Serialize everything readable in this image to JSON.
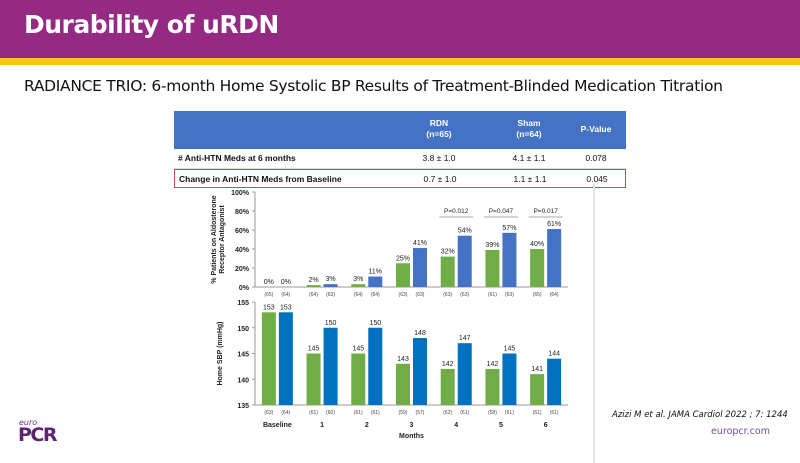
{
  "header": {
    "title": "Durability of uRDN"
  },
  "subtitle": "RADIANCE TRIO: 6-month Home Systolic BP Results of Treatment-Blinded Medication Titration",
  "table": {
    "columns": [
      "",
      "RDN\n(n=65)",
      "Sham\n(n=64)",
      "P-Value"
    ],
    "col_rdn_l1": "RDN",
    "col_rdn_l2": "(n=65)",
    "col_sham_l1": "Sham",
    "col_sham_l2": "(n=64)",
    "col_p": "P-Value",
    "rows": [
      {
        "label": "# Anti-HTN Meds at 6 months",
        "rdn": "3.8 ± 1.0",
        "sham": "4.1 ± 1.1",
        "p": "0.078"
      },
      {
        "label": "Change in Anti-HTN Meds from Baseline",
        "rdn": "0.7 ± 1.0",
        "sham": "1.1 ± 1.1",
        "p": "0.045"
      }
    ]
  },
  "colors": {
    "rdn": "#70ad47",
    "sham_top": "#4472c4",
    "sham_bottom": "#0070c0",
    "header": "#952a84",
    "stripe": "#f5c518"
  },
  "chart_data": [
    {
      "type": "bar",
      "title": "",
      "ylabel": "% Patients on Aldosterone Receptor Antagonist",
      "ylim": [
        0,
        100
      ],
      "yticks": [
        "0%",
        "20%",
        "40%",
        "60%",
        "80%",
        "100%"
      ],
      "categories": [
        "Baseline",
        "1",
        "2",
        "3",
        "4",
        "5",
        "6"
      ],
      "series": [
        {
          "name": "RDN",
          "values": [
            0,
            2,
            3,
            25,
            32,
            39,
            40
          ],
          "n": [
            "(65)",
            "(64)",
            "(64)",
            "(63)",
            "(63)",
            "(61)",
            "(65)"
          ]
        },
        {
          "name": "Sham",
          "values": [
            0,
            3,
            11,
            41,
            54,
            57,
            61
          ],
          "n": [
            "(64)",
            "(63)",
            "(64)",
            "(63)",
            "(63)",
            "(63)",
            "(64)"
          ]
        }
      ],
      "annotations": [
        {
          "category": "4",
          "text": "P=0.012"
        },
        {
          "category": "5",
          "text": "P=0.047"
        },
        {
          "category": "6",
          "text": "P=0.017"
        }
      ]
    },
    {
      "type": "bar",
      "title": "",
      "ylabel": "Home SBP (mmHg)",
      "xlabel": "Months",
      "ylim": [
        135,
        155
      ],
      "yticks": [
        "135",
        "140",
        "145",
        "150",
        "155"
      ],
      "categories": [
        "Baseline",
        "1",
        "2",
        "3",
        "4",
        "5",
        "6"
      ],
      "series": [
        {
          "name": "RDN",
          "values": [
            153,
            145,
            145,
            143,
            142,
            142,
            141
          ],
          "n": [
            "(63)",
            "(61)",
            "(61)",
            "(59)",
            "(62)",
            "(58)",
            "(61)"
          ]
        },
        {
          "name": "Sham",
          "values": [
            153,
            150,
            150,
            148,
            147,
            145,
            144
          ],
          "n": [
            "(64)",
            "(60)",
            "(61)",
            "(57)",
            "(61)",
            "(61)",
            "(61)"
          ]
        }
      ]
    }
  ],
  "citation": "Azizi M et al. JAMA Cardiol 2022 ; 7: 1244",
  "site": "europcr.com",
  "logo": {
    "top": "euro",
    "main": "PCR"
  }
}
